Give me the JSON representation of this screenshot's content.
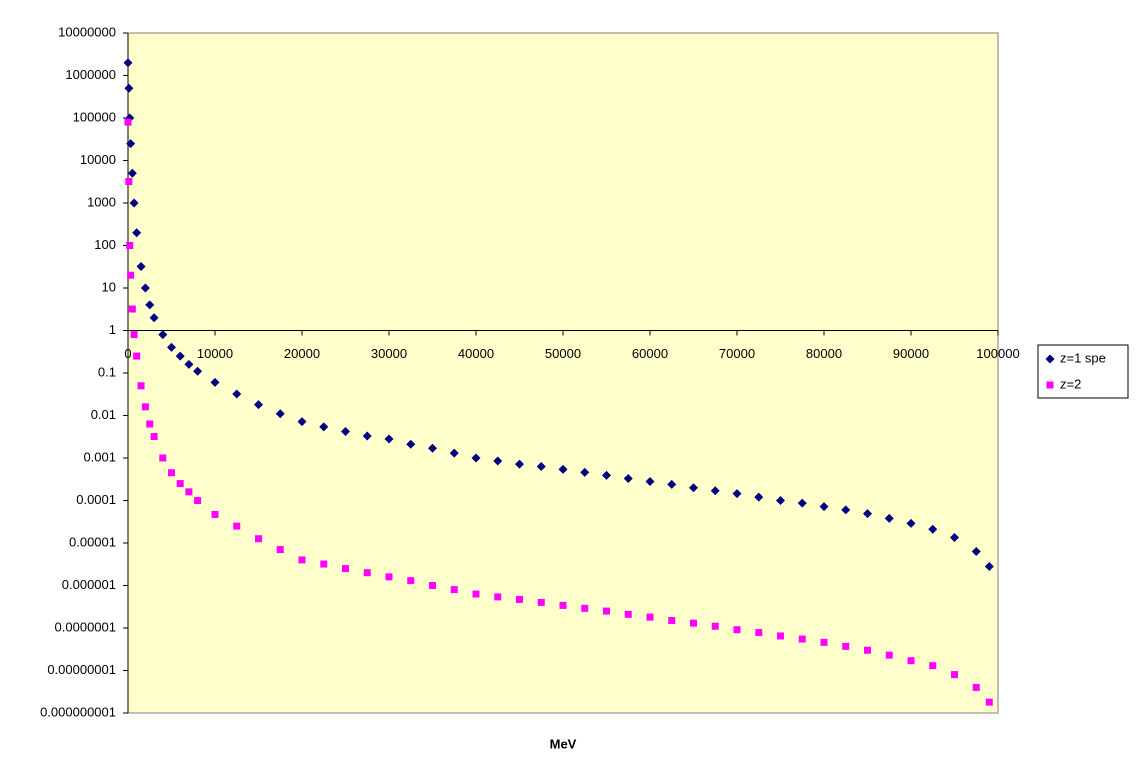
{
  "chart_data": {
    "type": "scatter",
    "x_label": "MeV",
    "log_y": true,
    "xlim": [
      0,
      100000
    ],
    "xticks": [
      0,
      10000,
      20000,
      30000,
      40000,
      50000,
      60000,
      70000,
      80000,
      90000,
      100000
    ],
    "ylim": [
      1e-09,
      10000000
    ],
    "yticks": [
      10000000,
      1000000,
      100000,
      10000,
      1000,
      100,
      10,
      1,
      0.1,
      0.01,
      0.001,
      0.0001,
      1e-05,
      1e-06,
      {
        "value": 1e-07,
        "label": "0.0000001"
      },
      {
        "value": 1e-08,
        "label": "0.00000001"
      },
      {
        "value": 1e-09,
        "label": "0.000000001"
      }
    ],
    "x_axis_crosses": 1,
    "x": [
      0,
      100,
      200,
      300,
      500,
      700,
      1000,
      1500,
      2000,
      2500,
      3000,
      4000,
      5000,
      6000,
      7000,
      8000,
      10000,
      12500,
      15000,
      17500,
      20000,
      22500,
      25000,
      27500,
      30000,
      32500,
      35000,
      37500,
      40000,
      42500,
      45000,
      47500,
      50000,
      52500,
      55000,
      57500,
      60000,
      62500,
      65000,
      67500,
      70000,
      72500,
      75000,
      77500,
      80000,
      82500,
      85000,
      87500,
      90000,
      92500,
      95000,
      97500,
      99000
    ],
    "legend": "right",
    "series": [
      {
        "name": "z=1 spe",
        "color": "#000080",
        "marker": "diamond",
        "values": [
          2000000,
          500000,
          100000,
          25000,
          5000,
          1000,
          200,
          32,
          10,
          4,
          2,
          0.8,
          0.4,
          0.25,
          0.16,
          0.11,
          0.06,
          0.032,
          0.018,
          0.011,
          0.0072,
          0.0054,
          0.0042,
          0.0033,
          0.0028,
          0.0021,
          0.0017,
          0.0013,
          0.001,
          0.00085,
          0.00072,
          0.00063,
          0.00054,
          0.00046,
          0.00039,
          0.00033,
          0.00028,
          0.00024,
          0.0002,
          0.00017,
          0.000145,
          0.00012,
          0.0001,
          8.7e-05,
          7.2e-05,
          6e-05,
          4.9e-05,
          3.8e-05,
          2.9e-05,
          2.1e-05,
          1.35e-05,
          6.3e-06,
          2.8e-06
        ]
      },
      {
        "name": "z=2",
        "color": "#FF00FF",
        "marker": "square",
        "values": [
          80000,
          3200,
          100,
          20,
          3.2,
          0.8,
          0.25,
          0.05,
          0.016,
          0.0063,
          0.0032,
          0.001,
          0.00045,
          0.00025,
          0.00016,
          0.0001,
          4.7e-05,
          2.5e-05,
          1.26e-05,
          7e-06,
          4e-06,
          3.2e-06,
          2.5e-06,
          2e-06,
          1.6e-06,
          1.3e-06,
          1e-06,
          8e-07,
          6.3e-07,
          5.4e-07,
          4.7e-07,
          4e-07,
          3.4e-07,
          2.9e-07,
          2.5e-07,
          2.1e-07,
          1.8e-07,
          1.5e-07,
          1.3e-07,
          1.1e-07,
          9.1e-08,
          7.8e-08,
          6.5e-08,
          5.5e-08,
          4.6e-08,
          3.7e-08,
          3e-08,
          2.3e-08,
          1.7e-08,
          1.3e-08,
          8e-09,
          4e-09,
          1.8e-09
        ]
      }
    ]
  }
}
